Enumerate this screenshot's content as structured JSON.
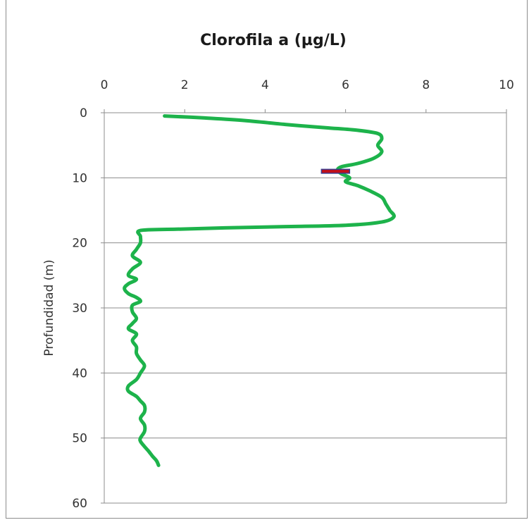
{
  "chart_data": {
    "type": "line",
    "title": "Clorofila a (µg/L)",
    "xlabel": "",
    "ylabel": "Profundidad (m)",
    "xlim": [
      0,
      10
    ],
    "ylim": [
      0,
      60
    ],
    "y_inverted": true,
    "x_axis_position": "top",
    "x_ticks": [
      "0",
      "2",
      "4",
      "6",
      "8",
      "10"
    ],
    "y_ticks": [
      "0",
      "10",
      "20",
      "30",
      "40",
      "50",
      "60"
    ],
    "grid": "horizontal",
    "legend": "none",
    "series": [
      {
        "color": "#1db34b",
        "points": [
          [
            1.5,
            0.5
          ],
          [
            2.5,
            0.8
          ],
          [
            3.5,
            1.2
          ],
          [
            4.5,
            1.8
          ],
          [
            5.5,
            2.3
          ],
          [
            6.3,
            2.7
          ],
          [
            6.8,
            3.2
          ],
          [
            6.9,
            4.0
          ],
          [
            6.8,
            5.0
          ],
          [
            6.9,
            6.0
          ],
          [
            6.7,
            7.0
          ],
          [
            6.3,
            7.8
          ],
          [
            5.9,
            8.3
          ],
          [
            5.8,
            8.8
          ],
          [
            5.9,
            9.4
          ],
          [
            6.1,
            10.0
          ],
          [
            6.0,
            10.6
          ],
          [
            6.3,
            11.2
          ],
          [
            6.6,
            12.0
          ],
          [
            6.9,
            13.0
          ],
          [
            7.0,
            14.0
          ],
          [
            7.1,
            15.0
          ],
          [
            7.2,
            16.0
          ],
          [
            6.9,
            16.8
          ],
          [
            6.0,
            17.3
          ],
          [
            4.5,
            17.5
          ],
          [
            3.0,
            17.7
          ],
          [
            1.8,
            17.9
          ],
          [
            0.9,
            18.1
          ],
          [
            0.9,
            19.0
          ],
          [
            0.9,
            20.0
          ],
          [
            0.8,
            21.0
          ],
          [
            0.7,
            22.0
          ],
          [
            0.9,
            23.0
          ],
          [
            0.7,
            24.0
          ],
          [
            0.6,
            25.0
          ],
          [
            0.8,
            25.6
          ],
          [
            0.6,
            26.3
          ],
          [
            0.5,
            27.0
          ],
          [
            0.6,
            27.8
          ],
          [
            0.8,
            28.4
          ],
          [
            0.9,
            29.0
          ],
          [
            0.7,
            29.6
          ],
          [
            0.7,
            30.6
          ],
          [
            0.8,
            31.6
          ],
          [
            0.7,
            32.4
          ],
          [
            0.6,
            33.2
          ],
          [
            0.8,
            34.0
          ],
          [
            0.7,
            35.0
          ],
          [
            0.8,
            36.0
          ],
          [
            0.8,
            37.0
          ],
          [
            0.9,
            38.0
          ],
          [
            1.0,
            38.9
          ],
          [
            0.9,
            40.0
          ],
          [
            0.8,
            41.0
          ],
          [
            0.6,
            42.0
          ],
          [
            0.6,
            42.8
          ],
          [
            0.8,
            43.6
          ],
          [
            0.9,
            44.3
          ],
          [
            1.0,
            45.0
          ],
          [
            1.0,
            46.0
          ],
          [
            0.9,
            47.0
          ],
          [
            1.0,
            48.0
          ],
          [
            1.0,
            49.0
          ],
          [
            0.9,
            50.0
          ],
          [
            0.9,
            50.5
          ],
          [
            1.0,
            51.3
          ],
          [
            1.1,
            52.0
          ],
          [
            1.2,
            52.8
          ],
          [
            1.3,
            53.5
          ],
          [
            1.35,
            54.2
          ]
        ]
      }
    ],
    "marker": {
      "color": "#c0101a",
      "x_range": [
        5.4,
        6.1
      ],
      "y_range": [
        8.7,
        9.3
      ]
    }
  }
}
